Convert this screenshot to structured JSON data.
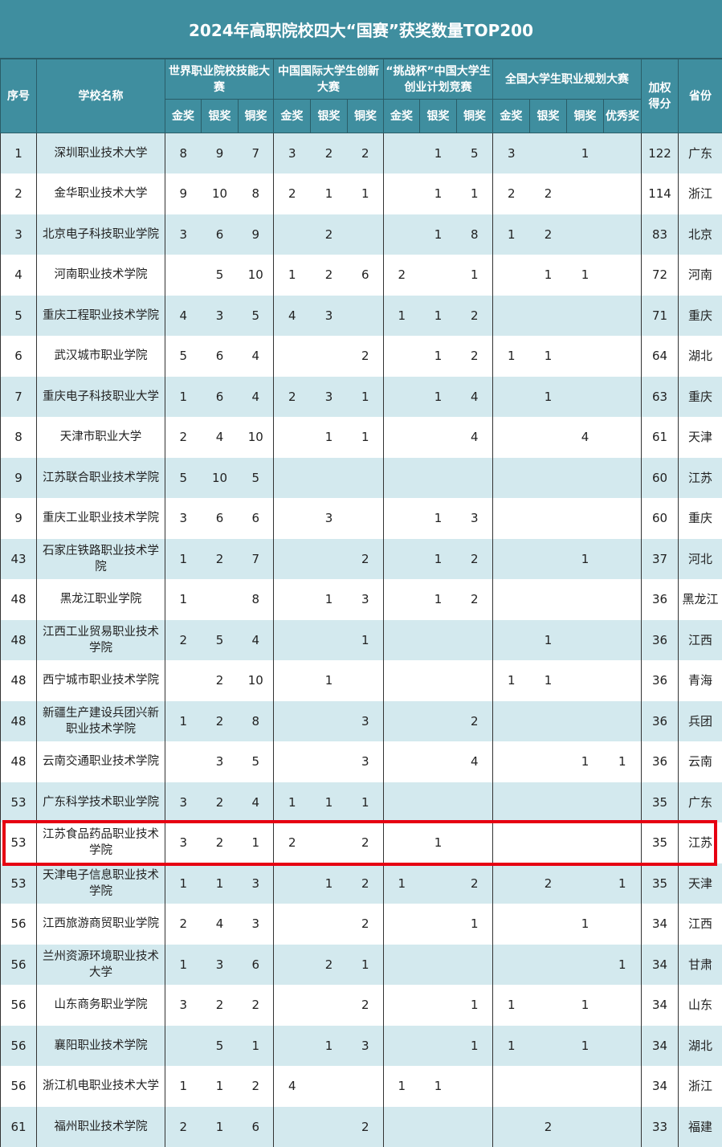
{
  "title": "2024年高职院校四大“国赛”获奖数量TOP200",
  "headers": {
    "rank": "序号",
    "name": "学校名称",
    "score": "加权得分",
    "province": "省份",
    "groups": [
      "世界职业院校技能大赛",
      "中国国际大学生创新大赛",
      "“挑战杯”中国大学生创业计划竞赛",
      "全国大学生职业规划大赛"
    ],
    "sub": [
      "金奖",
      "银奖",
      "铜奖",
      "金奖",
      "银奖",
      "铜奖",
      "金奖",
      "银奖",
      "铜奖",
      "金奖",
      "银奖",
      "铜奖",
      "优秀奖"
    ]
  },
  "highlight_color": "#e60012",
  "highlighted_row_index": 17,
  "rows": [
    [
      "1",
      "深圳职业技术大学",
      "8",
      "9",
      "7",
      "3",
      "2",
      "2",
      "",
      "1",
      "5",
      "3",
      "",
      "1",
      "",
      "122",
      "广东"
    ],
    [
      "2",
      "金华职业技术大学",
      "9",
      "10",
      "8",
      "2",
      "1",
      "1",
      "",
      "1",
      "1",
      "2",
      "2",
      "",
      "",
      "114",
      "浙江"
    ],
    [
      "3",
      "北京电子科技职业学院",
      "3",
      "6",
      "9",
      "",
      "2",
      "",
      "",
      "1",
      "8",
      "1",
      "2",
      "",
      "",
      "83",
      "北京"
    ],
    [
      "4",
      "河南职业技术学院",
      "",
      "5",
      "10",
      "1",
      "2",
      "6",
      "2",
      "",
      "1",
      "",
      "1",
      "1",
      "",
      "72",
      "河南"
    ],
    [
      "5",
      "重庆工程职业技术学院",
      "4",
      "3",
      "5",
      "4",
      "3",
      "",
      "1",
      "1",
      "2",
      "",
      "",
      "",
      "",
      "71",
      "重庆"
    ],
    [
      "6",
      "武汉城市职业学院",
      "5",
      "6",
      "4",
      "",
      "",
      "2",
      "",
      "1",
      "2",
      "1",
      "1",
      "",
      "",
      "64",
      "湖北"
    ],
    [
      "7",
      "重庆电子科技职业大学",
      "1",
      "6",
      "4",
      "2",
      "3",
      "1",
      "",
      "1",
      "4",
      "",
      "1",
      "",
      "",
      "63",
      "重庆"
    ],
    [
      "8",
      "天津市职业大学",
      "2",
      "4",
      "10",
      "",
      "1",
      "1",
      "",
      "",
      "4",
      "",
      "",
      "4",
      "",
      "61",
      "天津"
    ],
    [
      "9",
      "江苏联合职业技术学院",
      "5",
      "10",
      "5",
      "",
      "",
      "",
      "",
      "",
      "",
      "",
      "",
      "",
      "",
      "60",
      "江苏"
    ],
    [
      "9",
      "重庆工业职业技术学院",
      "3",
      "6",
      "6",
      "",
      "3",
      "",
      "",
      "1",
      "3",
      "",
      "",
      "",
      "",
      "60",
      "重庆"
    ],
    [
      "43",
      "石家庄铁路职业技术学院",
      "1",
      "2",
      "7",
      "",
      "",
      "2",
      "",
      "1",
      "2",
      "",
      "",
      "1",
      "",
      "37",
      "河北"
    ],
    [
      "48",
      "黑龙江职业学院",
      "1",
      "",
      "8",
      "",
      "1",
      "3",
      "",
      "1",
      "2",
      "",
      "",
      "",
      "",
      "36",
      "黑龙江"
    ],
    [
      "48",
      "江西工业贸易职业技术学院",
      "2",
      "5",
      "4",
      "",
      "",
      "1",
      "",
      "",
      "",
      "",
      "1",
      "",
      "",
      "36",
      "江西"
    ],
    [
      "48",
      "西宁城市职业技术学院",
      "",
      "2",
      "10",
      "",
      "1",
      "",
      "",
      "",
      "",
      "1",
      "1",
      "",
      "",
      "36",
      "青海"
    ],
    [
      "48",
      "新疆生产建设兵团兴新职业技术学院",
      "1",
      "2",
      "8",
      "",
      "",
      "3",
      "",
      "",
      "2",
      "",
      "",
      "",
      "",
      "36",
      "兵团"
    ],
    [
      "48",
      "云南交通职业技术学院",
      "",
      "3",
      "5",
      "",
      "",
      "3",
      "",
      "",
      "4",
      "",
      "",
      "1",
      "1",
      "36",
      "云南"
    ],
    [
      "53",
      "广东科学技术职业学院",
      "3",
      "2",
      "4",
      "1",
      "1",
      "1",
      "",
      "",
      "",
      "",
      "",
      "",
      "",
      "35",
      "广东"
    ],
    [
      "53",
      "江苏食品药品职业技术学院",
      "3",
      "2",
      "1",
      "2",
      "",
      "2",
      "",
      "1",
      "",
      "",
      "",
      "",
      "",
      "35",
      "江苏"
    ],
    [
      "53",
      "天津电子信息职业技术学院",
      "1",
      "1",
      "3",
      "",
      "1",
      "2",
      "1",
      "",
      "2",
      "",
      "2",
      "",
      "1",
      "35",
      "天津"
    ],
    [
      "56",
      "江西旅游商贸职业学院",
      "2",
      "4",
      "3",
      "",
      "",
      "2",
      "",
      "",
      "1",
      "",
      "",
      "1",
      "",
      "34",
      "江西"
    ],
    [
      "56",
      "兰州资源环境职业技术大学",
      "1",
      "3",
      "6",
      "",
      "2",
      "1",
      "",
      "",
      "",
      "",
      "",
      "",
      "1",
      "34",
      "甘肃"
    ],
    [
      "56",
      "山东商务职业学院",
      "3",
      "2",
      "2",
      "",
      "",
      "2",
      "",
      "",
      "1",
      "1",
      "",
      "1",
      "",
      "34",
      "山东"
    ],
    [
      "56",
      "襄阳职业技术学院",
      "",
      "5",
      "1",
      "",
      "1",
      "3",
      "",
      "",
      "1",
      "1",
      "",
      "1",
      "",
      "34",
      "湖北"
    ],
    [
      "56",
      "浙江机电职业技术大学",
      "1",
      "1",
      "2",
      "4",
      "",
      "",
      "1",
      "1",
      "",
      "",
      "",
      "",
      "",
      "34",
      "浙江"
    ],
    [
      "61",
      "福州职业技术学院",
      "2",
      "1",
      "6",
      "",
      "",
      "2",
      "",
      "",
      "",
      "",
      "2",
      "",
      "",
      "33",
      "福建"
    ]
  ]
}
